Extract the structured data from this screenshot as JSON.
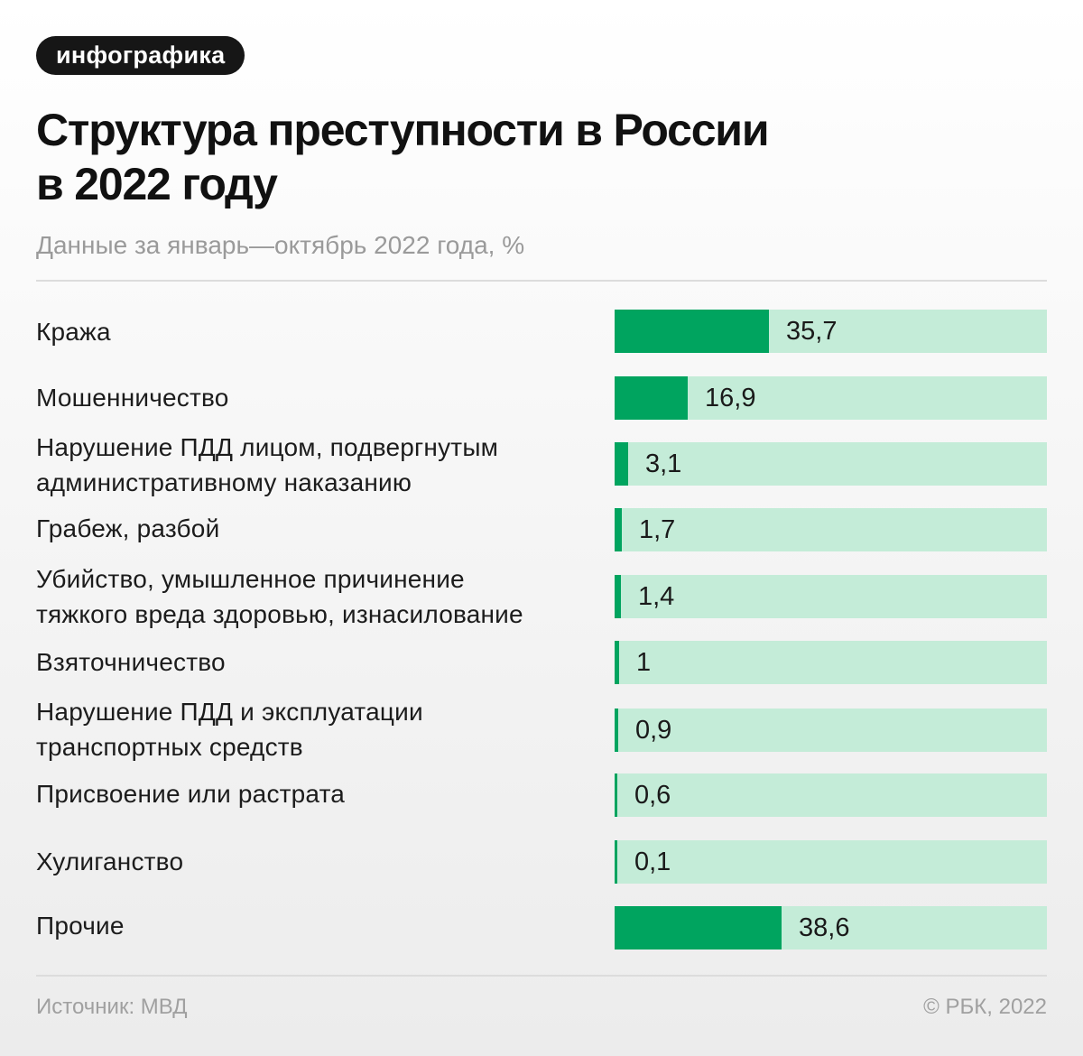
{
  "tag": "инфографика",
  "title_lines": [
    "Структура преступности в России",
    "в 2022 году"
  ],
  "subtitle": "Данные за январь—октябрь 2022 года, %",
  "source": "Источник: МВД",
  "copyright": "© РБК, 2022",
  "colors": {
    "bar_fill": "#00a45f",
    "bar_track": "#c4ecd8"
  },
  "chart_data": {
    "type": "bar",
    "orientation": "horizontal",
    "title": "Структура преступности в России в 2022 году",
    "subtitle": "Данные за январь—октябрь 2022 года, %",
    "categories": [
      "Кража",
      "Мошенничество",
      "Нарушение ПДД лицом, подвергнутым административному наказанию",
      "Грабеж, разбой",
      "Убийство, умышленное причинение тяжкого вреда здоровью, изнасилование",
      "Взяточничество",
      "Нарушение ПДД и эксплуатации транспортных средств",
      "Присвоение или растрата",
      "Хулиганство",
      "Прочие"
    ],
    "category_lines": [
      [
        "Кража"
      ],
      [
        "Мошенничество"
      ],
      [
        "Нарушение ПДД лицом, подвергнутым",
        "административному наказанию"
      ],
      [
        "Грабеж, разбой"
      ],
      [
        "Убийство, умышленное причинение",
        "тяжкого вреда здоровью, изнасилование"
      ],
      [
        "Взяточничество"
      ],
      [
        "Нарушение ПДД и эксплуатации",
        "транспортных средств"
      ],
      [
        "Присвоение или растрата"
      ],
      [
        "Хулиганство"
      ],
      [
        "Прочие"
      ]
    ],
    "values": [
      35.7,
      16.9,
      3.1,
      1.7,
      1.4,
      1,
      0.9,
      0.6,
      0.1,
      38.6
    ],
    "value_labels": [
      "35,7",
      "16,9",
      "3,1",
      "1,7",
      "1,4",
      "1",
      "0,9",
      "0,6",
      "0,1",
      "38,6"
    ],
    "xlim": [
      0,
      100
    ],
    "unit": "%",
    "grid": false,
    "legend": "none"
  }
}
